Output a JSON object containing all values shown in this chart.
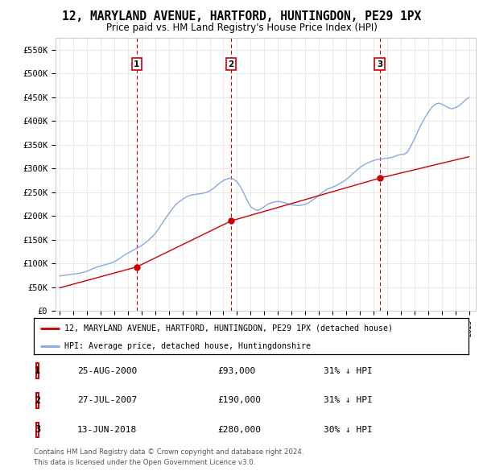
{
  "title": "12, MARYLAND AVENUE, HARTFORD, HUNTINGDON, PE29 1PX",
  "subtitle": "Price paid vs. HM Land Registry's House Price Index (HPI)",
  "ylim": [
    0,
    575000
  ],
  "yticks": [
    0,
    50000,
    100000,
    150000,
    200000,
    250000,
    300000,
    350000,
    400000,
    450000,
    500000,
    550000
  ],
  "ytick_labels": [
    "£0",
    "£50K",
    "£100K",
    "£150K",
    "£200K",
    "£250K",
    "£300K",
    "£350K",
    "£400K",
    "£450K",
    "£500K",
    "£550K"
  ],
  "sale_years": [
    2000.646,
    2007.571,
    2018.452
  ],
  "sale_prices": [
    93000,
    190000,
    280000
  ],
  "sale_label_info": [
    {
      "num": "1",
      "date": "25-AUG-2000",
      "price": "£93,000",
      "pct": "31% ↓ HPI"
    },
    {
      "num": "2",
      "date": "27-JUL-2007",
      "price": "£190,000",
      "pct": "31% ↓ HPI"
    },
    {
      "num": "3",
      "date": "13-JUN-2018",
      "price": "£280,000",
      "pct": "30% ↓ HPI"
    }
  ],
  "legend_line1": "12, MARYLAND AVENUE, HARTFORD, HUNTINGDON, PE29 1PX (detached house)",
  "legend_line2": "HPI: Average price, detached house, Huntingdonshire",
  "footer_line1": "Contains HM Land Registry data © Crown copyright and database right 2024.",
  "footer_line2": "This data is licensed under the Open Government Licence v3.0.",
  "line_color_property": "#cc0000",
  "line_color_hpi": "#88aadd",
  "background_color": "#ffffff",
  "grid_color": "#e0e0e0",
  "label_box_color": "#cc0000",
  "xlim_left": 1994.7,
  "xlim_right": 2025.5
}
